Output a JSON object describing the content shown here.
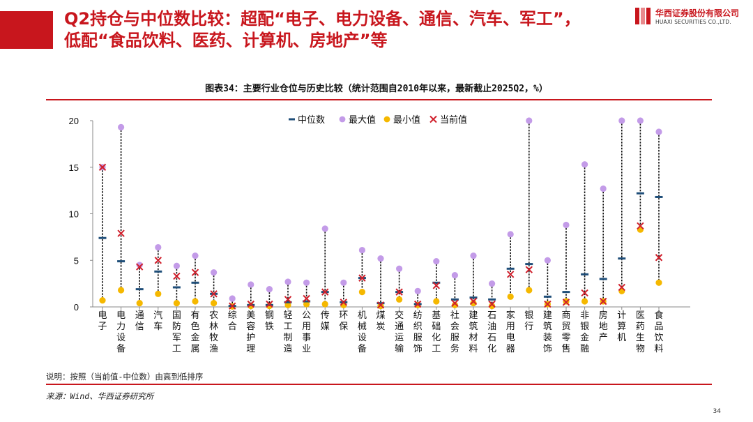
{
  "slide": {
    "headline_line1": "Q2持仓与中位数比较：超配“电子、电力设备、通信、汽车、军工”，",
    "headline_line2": "低配“食品饮料、医药、计算机、房地产”等",
    "logo_cn": "华西证券股份有限公司",
    "logo_en": "HUAXI SECURITIES CO.,LTD.",
    "figure_title": "图表34：主要行业仓位与历史比较（统计范围自2010年以来，最新截止2025Q2，%）",
    "note": "说明：按照（当前值-中位数）由高到低排序",
    "source": "来源：Wind、华西证券研究所",
    "page_number": "34"
  },
  "colors": {
    "brand_red": "#c8161d",
    "median": "#1f4e79",
    "max": "#c39be8",
    "min": "#f5b800",
    "current": "#d0202c"
  },
  "chart_data": {
    "type": "scatter",
    "ylim": [
      0,
      20
    ],
    "yticks": [
      0,
      5,
      10,
      15,
      20
    ],
    "legend_position": "top",
    "categories": [
      "电子",
      "电力设备",
      "通信",
      "汽车",
      "国防军工",
      "有色金属",
      "农林牧渔",
      "综合",
      "美容护理",
      "钢铁",
      "轻工制造",
      "公用事业",
      "传媒",
      "环保",
      "机械设备",
      "煤炭",
      "交通运输",
      "纺织服饰",
      "基础化工",
      "社会服务",
      "建筑材料",
      "石油石化",
      "家用电器",
      "银行",
      "建筑装饰",
      "商贸零售",
      "非银金融",
      "房地产",
      "计算机",
      "医药生物",
      "食品饮料"
    ],
    "series": [
      {
        "name": "中位数",
        "marker": "dash",
        "values": [
          7.4,
          4.9,
          1.9,
          3.8,
          2.1,
          2.6,
          1.4,
          0.1,
          0.2,
          0.2,
          0.5,
          0.6,
          1.6,
          0.5,
          3.1,
          0.4,
          1.6,
          0.3,
          2.6,
          0.8,
          1.0,
          0.8,
          4.1,
          4.6,
          1.1,
          1.6,
          3.5,
          3.0,
          5.2,
          12.2,
          11.8
        ]
      },
      {
        "name": "最大值",
        "marker": "circle",
        "values": [
          15.0,
          19.3,
          4.5,
          6.4,
          4.4,
          5.5,
          3.7,
          0.9,
          2.4,
          1.9,
          2.7,
          2.6,
          8.4,
          2.6,
          6.1,
          5.2,
          4.1,
          1.7,
          4.9,
          3.4,
          5.5,
          2.5,
          7.8,
          20.0,
          5.0,
          8.8,
          15.3,
          12.7,
          20.0,
          20.0,
          18.8
        ]
      },
      {
        "name": "最小值",
        "marker": "circle",
        "values": [
          0.7,
          1.8,
          0.4,
          1.4,
          0.4,
          0.6,
          0.4,
          0.05,
          0.1,
          0.1,
          0.2,
          0.3,
          0.3,
          0.2,
          1.6,
          0.1,
          0.8,
          0.2,
          0.6,
          0.2,
          0.4,
          0.1,
          1.1,
          1.8,
          0.3,
          0.6,
          0.6,
          0.6,
          1.7,
          8.3,
          2.6
        ]
      },
      {
        "name": "当前值",
        "marker": "x",
        "values": [
          15.0,
          7.9,
          4.3,
          5.0,
          3.3,
          3.7,
          1.4,
          0.1,
          0.3,
          0.3,
          0.8,
          0.9,
          1.6,
          0.5,
          3.1,
          0.2,
          1.6,
          0.3,
          2.3,
          0.4,
          0.6,
          0.3,
          3.5,
          4.0,
          0.3,
          0.5,
          1.5,
          0.6,
          2.1,
          8.7,
          5.3
        ]
      }
    ]
  }
}
